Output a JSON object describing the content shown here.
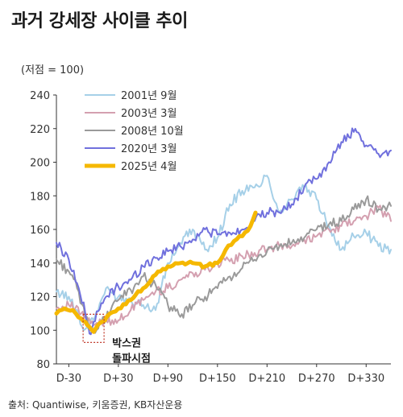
{
  "title": "과거 강세장 사이클 추이",
  "unit_label": "(저점 = 100)",
  "source": "출처: Quantiwise, 키움증권, KB자산운용",
  "chart_data": {
    "type": "line",
    "ylim": [
      80,
      240
    ],
    "yticks": [
      80,
      100,
      120,
      140,
      160,
      180,
      200,
      220,
      240
    ],
    "xlim": [
      -45,
      360
    ],
    "xticks": [
      -30,
      30,
      90,
      150,
      210,
      270,
      330
    ],
    "xtick_labels": [
      "D-30",
      "D+30",
      "D+90",
      "D+150",
      "D+210",
      "D+270",
      "D+330"
    ],
    "legend_position": "top-center",
    "annotation": {
      "line1": "박스권",
      "line2": "돌파시점",
      "x": 0,
      "y": 99
    },
    "series": [
      {
        "name": "2001년 9월",
        "color": "#a6d0e8",
        "width": 2,
        "points": [
          [
            -45,
            123
          ],
          [
            -30,
            120
          ],
          [
            -20,
            112
          ],
          [
            -12,
            100
          ],
          [
            0,
            106
          ],
          [
            15,
            125
          ],
          [
            30,
            120
          ],
          [
            45,
            118
          ],
          [
            60,
            115
          ],
          [
            75,
            112
          ],
          [
            90,
            140
          ],
          [
            105,
            152
          ],
          [
            120,
            160
          ],
          [
            135,
            148
          ],
          [
            150,
            155
          ],
          [
            165,
            175
          ],
          [
            180,
            183
          ],
          [
            195,
            185
          ],
          [
            210,
            192
          ],
          [
            225,
            170
          ],
          [
            240,
            178
          ],
          [
            255,
            185
          ],
          [
            270,
            178
          ],
          [
            285,
            162
          ],
          [
            300,
            148
          ],
          [
            315,
            156
          ],
          [
            330,
            158
          ],
          [
            345,
            150
          ],
          [
            360,
            148
          ]
        ]
      },
      {
        "name": "2003년 3월",
        "color": "#d4a0b0",
        "width": 2,
        "points": [
          [
            -45,
            113
          ],
          [
            -30,
            115
          ],
          [
            -15,
            110
          ],
          [
            0,
            103
          ],
          [
            15,
            106
          ],
          [
            30,
            106
          ],
          [
            45,
            112
          ],
          [
            60,
            118
          ],
          [
            75,
            123
          ],
          [
            90,
            125
          ],
          [
            105,
            130
          ],
          [
            120,
            134
          ],
          [
            135,
            136
          ],
          [
            150,
            140
          ],
          [
            165,
            141
          ],
          [
            180,
            144
          ],
          [
            195,
            146
          ],
          [
            210,
            148
          ],
          [
            225,
            150
          ],
          [
            240,
            150
          ],
          [
            255,
            154
          ],
          [
            270,
            156
          ],
          [
            285,
            160
          ],
          [
            300,
            162
          ],
          [
            315,
            165
          ],
          [
            330,
            168
          ],
          [
            345,
            173
          ],
          [
            360,
            165
          ]
        ]
      },
      {
        "name": "2008년 10월",
        "color": "#9a9a9a",
        "width": 2,
        "points": [
          [
            -45,
            142
          ],
          [
            -30,
            135
          ],
          [
            -20,
            125
          ],
          [
            -10,
            108
          ],
          [
            0,
            100
          ],
          [
            15,
            107
          ],
          [
            30,
            118
          ],
          [
            45,
            124
          ],
          [
            60,
            132
          ],
          [
            75,
            127
          ],
          [
            90,
            115
          ],
          [
            105,
            108
          ],
          [
            120,
            115
          ],
          [
            135,
            120
          ],
          [
            150,
            125
          ],
          [
            165,
            132
          ],
          [
            180,
            137
          ],
          [
            195,
            142
          ],
          [
            210,
            147
          ],
          [
            225,
            150
          ],
          [
            240,
            152
          ],
          [
            255,
            155
          ],
          [
            270,
            160
          ],
          [
            285,
            163
          ],
          [
            300,
            165
          ],
          [
            315,
            172
          ],
          [
            330,
            178
          ],
          [
            345,
            172
          ],
          [
            360,
            174
          ]
        ]
      },
      {
        "name": "2020년 3월",
        "color": "#7070dd",
        "width": 2,
        "points": [
          [
            -45,
            152
          ],
          [
            -30,
            142
          ],
          [
            -20,
            128
          ],
          [
            -10,
            110
          ],
          [
            -5,
            98
          ],
          [
            0,
            105
          ],
          [
            15,
            120
          ],
          [
            30,
            126
          ],
          [
            45,
            130
          ],
          [
            60,
            138
          ],
          [
            75,
            143
          ],
          [
            90,
            147
          ],
          [
            105,
            150
          ],
          [
            120,
            154
          ],
          [
            135,
            160
          ],
          [
            150,
            157
          ],
          [
            165,
            158
          ],
          [
            180,
            160
          ],
          [
            195,
            165
          ],
          [
            210,
            170
          ],
          [
            225,
            170
          ],
          [
            240,
            175
          ],
          [
            255,
            185
          ],
          [
            270,
            190
          ],
          [
            285,
            200
          ],
          [
            300,
            212
          ],
          [
            315,
            218
          ],
          [
            330,
            210
          ],
          [
            345,
            205
          ],
          [
            360,
            207
          ]
        ]
      },
      {
        "name": "2025년 4월",
        "color": "#f5b800",
        "width": 5,
        "points": [
          [
            -45,
            110
          ],
          [
            -35,
            113
          ],
          [
            -25,
            112
          ],
          [
            -15,
            107
          ],
          [
            -10,
            105
          ],
          [
            -5,
            102
          ],
          [
            0,
            99
          ],
          [
            5,
            103
          ],
          [
            10,
            105
          ],
          [
            20,
            110
          ],
          [
            30,
            113
          ],
          [
            45,
            118
          ],
          [
            60,
            125
          ],
          [
            75,
            133
          ],
          [
            90,
            138
          ],
          [
            105,
            140
          ],
          [
            120,
            140
          ],
          [
            135,
            138
          ],
          [
            150,
            140
          ],
          [
            160,
            148
          ],
          [
            170,
            153
          ],
          [
            180,
            156
          ],
          [
            190,
            162
          ],
          [
            196,
            170
          ]
        ]
      }
    ]
  }
}
